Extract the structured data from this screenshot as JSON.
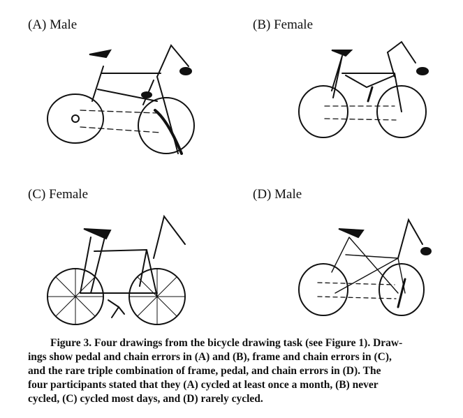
{
  "panels": [
    {
      "id": "A",
      "label": "(A) Male"
    },
    {
      "id": "B",
      "label": "(B) Female"
    },
    {
      "id": "C",
      "label": "(C) Female"
    },
    {
      "id": "D",
      "label": "(D) Male"
    }
  ],
  "caption": {
    "lines": [
      "Figure 3. Four drawings from the bicycle drawing task (see Figure 1). Draw-",
      "ings show pedal and chain errors in (A) and (B), frame and chain errors in (C),",
      "and the rare triple combination of frame, pedal, and chain errors in (D). The",
      "four participants stated that they (A) cycled at least once a month, (B) never",
      "cycled, (C) cycled most days, and (D) rarely cycled."
    ]
  }
}
